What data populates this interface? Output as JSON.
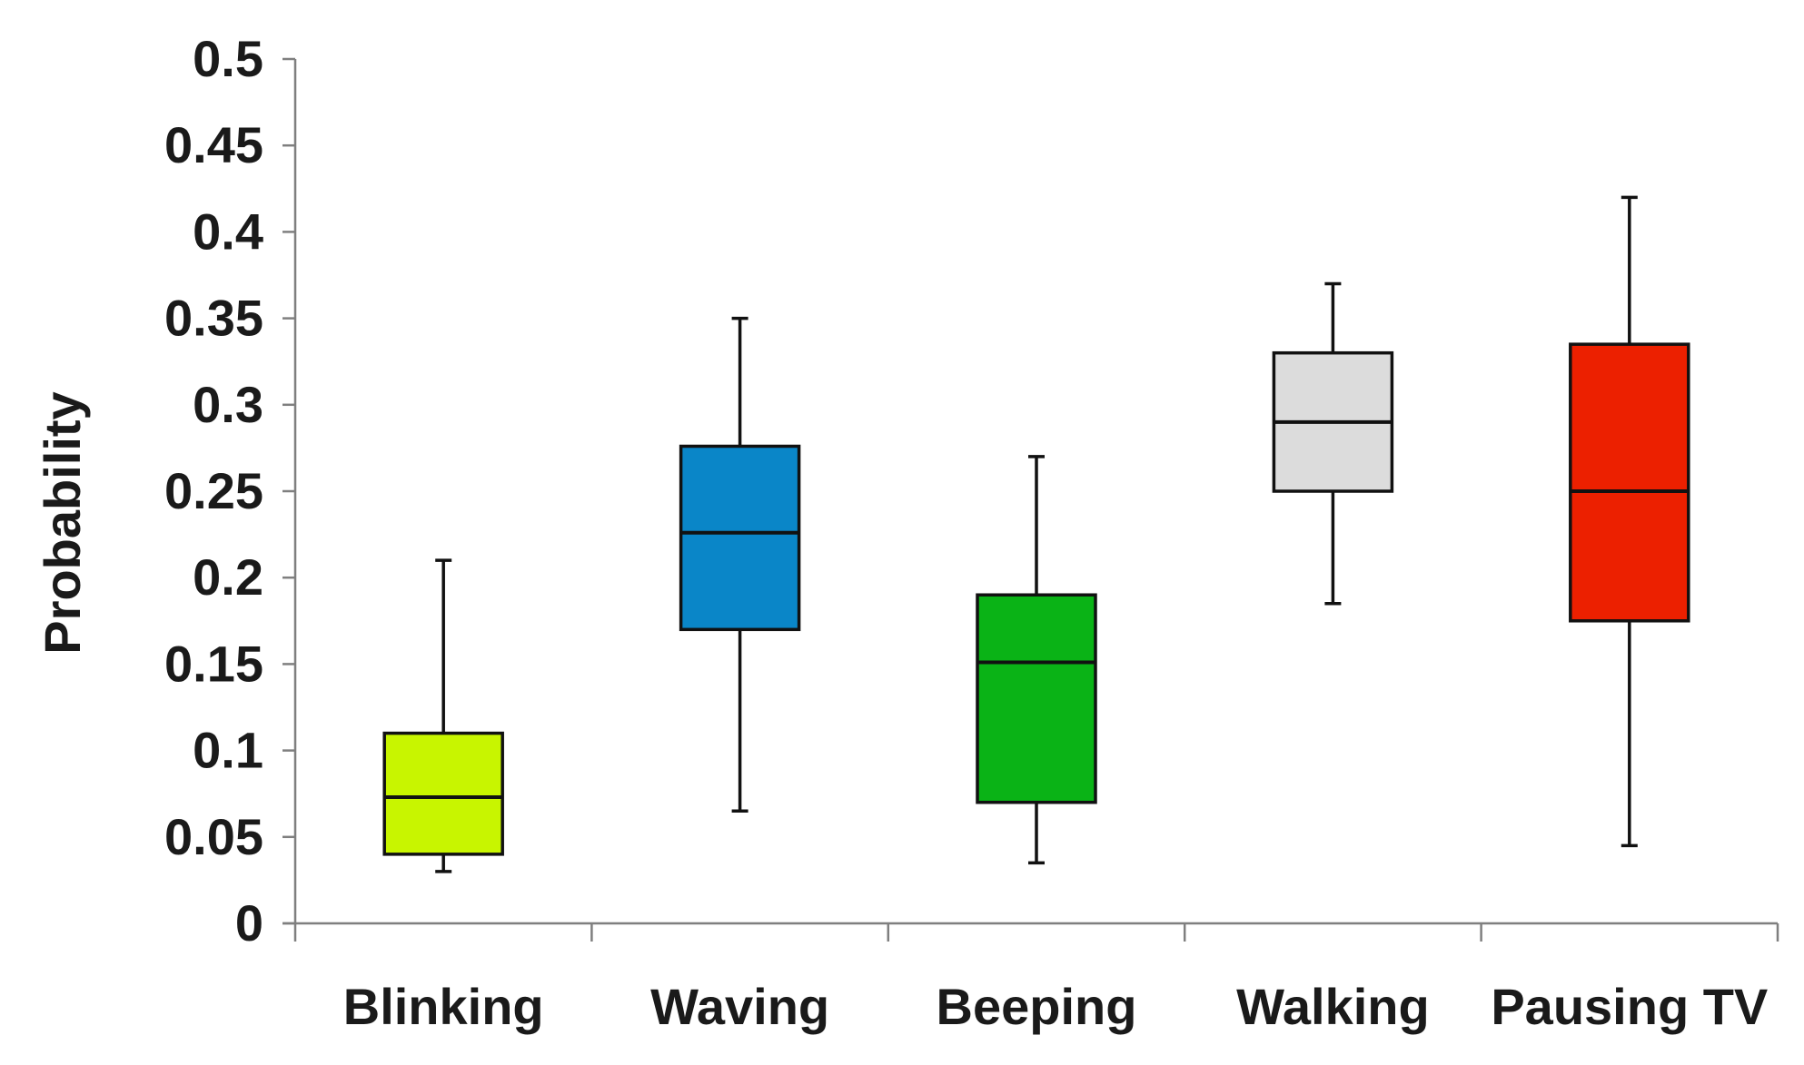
{
  "chart_data": {
    "type": "boxplot",
    "title": "",
    "xlabel": "",
    "ylabel": "Probability",
    "ylim": [
      0,
      0.5
    ],
    "yticks": [
      {
        "value": 0,
        "label": "0"
      },
      {
        "value": 0.05,
        "label": "0.05"
      },
      {
        "value": 0.1,
        "label": "0.1"
      },
      {
        "value": 0.15,
        "label": "0.15"
      },
      {
        "value": 0.2,
        "label": "0.2"
      },
      {
        "value": 0.25,
        "label": "0.25"
      },
      {
        "value": 0.3,
        "label": "0.3"
      },
      {
        "value": 0.35,
        "label": "0.35"
      },
      {
        "value": 0.4,
        "label": "0.4"
      },
      {
        "value": 0.45,
        "label": "0.45"
      },
      {
        "value": 0.5,
        "label": "0.5"
      }
    ],
    "grid": false,
    "categories": [
      "Blinking",
      "Waving",
      "Beeping",
      "Walking",
      "Pausing TV"
    ],
    "boxes": [
      {
        "category": "Blinking",
        "min": 0.03,
        "q1": 0.04,
        "median": 0.073,
        "q3": 0.11,
        "max": 0.21,
        "color": "#c8f500"
      },
      {
        "category": "Waving",
        "min": 0.065,
        "q1": 0.17,
        "median": 0.226,
        "q3": 0.276,
        "max": 0.35,
        "color": "#0a86c8"
      },
      {
        "category": "Beeping",
        "min": 0.035,
        "q1": 0.07,
        "median": 0.151,
        "q3": 0.19,
        "max": 0.27,
        "color": "#0ab316"
      },
      {
        "category": "Walking",
        "min": 0.185,
        "q1": 0.25,
        "median": 0.29,
        "q3": 0.33,
        "max": 0.37,
        "color": "#dcdcdc"
      },
      {
        "category": "Pausing TV",
        "min": 0.045,
        "q1": 0.175,
        "median": 0.25,
        "q3": 0.335,
        "max": 0.42,
        "color": "#ec2000"
      }
    ]
  }
}
